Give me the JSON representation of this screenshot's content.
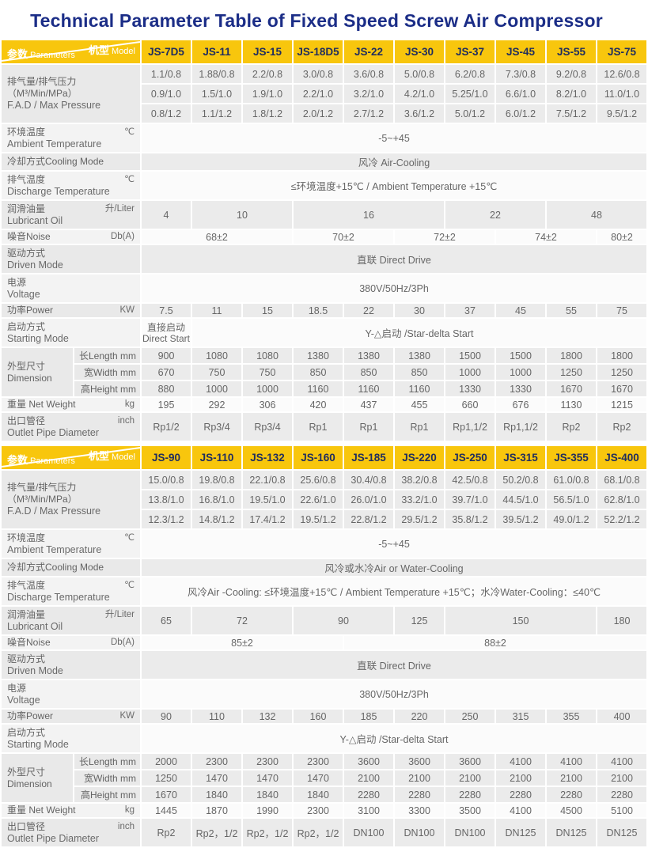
{
  "title": "Technical Parameter Table of  Fixed Speed Screw Air Compressor",
  "colors": {
    "accent_yellow": "#f8c60d",
    "title_blue": "#1b2d87",
    "model_text": "#202d5e",
    "body_text": "#666666"
  },
  "corner": {
    "model_zh": "机型",
    "model_en": "Model",
    "param_zh": "参数",
    "param_en": "Parameters"
  },
  "tables": [
    {
      "models": [
        "JS-7D5",
        "JS-11",
        "JS-15",
        "JS-18D5",
        "JS-22",
        "JS-30",
        "JS-37",
        "JS-45",
        "JS-55",
        "JS-75"
      ],
      "rows": [
        {
          "type": "multi",
          "shade": "g",
          "label": {
            "zh": "排气量/排气压力（M³/Min/MPa）",
            "en": "F.A.D / Max Pressure",
            "unit": ""
          },
          "lines": [
            [
              "1.1/0.8",
              "1.88/0.8",
              "2.2/0.8",
              "3.0/0.8",
              "3.6/0.8",
              "5.0/0.8",
              "6.2/0.8",
              "7.3/0.8",
              "9.2/0.8",
              "12.6/0.8"
            ],
            [
              "0.9/1.0",
              "1.5/1.0",
              "1.9/1.0",
              "2.2/1.0",
              "3.2/1.0",
              "4.2/1.0",
              "5.25/1.0",
              "6.6/1.0",
              "8.2/1.0",
              "11.0/1.0"
            ],
            [
              "0.8/1.2",
              "1.1/1.2",
              "1.8/1.2",
              "2.0/1.2",
              "2.7/1.2",
              "3.6/1.2",
              "5.0/1.2",
              "6.0/1.2",
              "7.5/1.2",
              "9.5/1.2"
            ]
          ]
        },
        {
          "type": "cells",
          "shade": "l",
          "h": "tall",
          "label": {
            "zh": "环境温度",
            "en": "Ambient Temperature",
            "unit": "℃"
          },
          "cells": [
            {
              "t": "-5~+45",
              "s": 10
            }
          ]
        },
        {
          "type": "cells",
          "shade": "g",
          "h": "short",
          "label": {
            "zh": "冷却方式Cooling Mode",
            "en": "",
            "unit": ""
          },
          "cells": [
            {
              "t": "风冷  Air-Cooling",
              "s": 10
            }
          ]
        },
        {
          "type": "cells",
          "shade": "l",
          "h": "tall",
          "label": {
            "zh": "排气温度",
            "en": "Discharge Temperature",
            "unit": "℃"
          },
          "cells": [
            {
              "t": "≤环境温度+15℃ / Ambient Temperature  +15℃",
              "s": 10
            }
          ]
        },
        {
          "type": "cells",
          "shade": "g",
          "h": "tall",
          "label": {
            "zh": "润滑油量",
            "en": "Lubricant Oil",
            "unit": "升/Liter"
          },
          "cells": [
            {
              "t": "4",
              "s": 1
            },
            {
              "t": "10",
              "s": 2
            },
            {
              "t": "16",
              "s": 3
            },
            {
              "t": "22",
              "s": 2
            },
            {
              "t": "48",
              "s": 2
            }
          ]
        },
        {
          "type": "cells",
          "shade": "l",
          "h": "short",
          "label": {
            "zh": "噪音Noise",
            "en": "",
            "unit": "Db(A)"
          },
          "cells": [
            {
              "t": "68±2",
              "s": 3
            },
            {
              "t": "70±2",
              "s": 2
            },
            {
              "t": "72±2",
              "s": 2
            },
            {
              "t": "74±2",
              "s": 2
            },
            {
              "t": "80±2",
              "s": 1
            }
          ]
        },
        {
          "type": "cells",
          "shade": "g",
          "h": "tall",
          "label": {
            "zh": "驱动方式",
            "en": "Driven Mode",
            "unit": ""
          },
          "cells": [
            {
              "t": "直联 Direct Drive",
              "s": 10
            }
          ]
        },
        {
          "type": "cells",
          "shade": "l",
          "h": "tall",
          "label": {
            "zh": "电源",
            "en": "Voltage",
            "unit": ""
          },
          "cells": [
            {
              "t": "380V/50Hz/3Ph",
              "s": 10
            }
          ]
        },
        {
          "type": "cells",
          "shade": "g",
          "h": "short",
          "label": {
            "zh": "功率Power",
            "en": "",
            "unit": "KW"
          },
          "cells": [
            {
              "t": "7.5"
            },
            {
              "t": "11"
            },
            {
              "t": "15"
            },
            {
              "t": "18.5"
            },
            {
              "t": "22"
            },
            {
              "t": "30"
            },
            {
              "t": "37"
            },
            {
              "t": "45"
            },
            {
              "t": "55"
            },
            {
              "t": "75"
            }
          ]
        },
        {
          "type": "cells",
          "shade": "l",
          "h": "tall",
          "label": {
            "zh": "启动方式",
            "en": "Starting Mode",
            "unit": ""
          },
          "cells": [
            {
              "t": "直接启动\nDirect Start",
              "s": 1,
              "pre": true
            },
            {
              "t": "Y-△启动 /Star-delta Start",
              "s": 9
            }
          ]
        },
        {
          "type": "dim",
          "shade": "g",
          "group": {
            "zh": "外型尺寸",
            "en": "Dimension"
          },
          "subrows": [
            {
              "n": "长Length mm",
              "v": [
                "900",
                "1080",
                "1080",
                "1380",
                "1380",
                "1380",
                "1500",
                "1500",
                "1800",
                "1800"
              ]
            },
            {
              "n": "宽Width  mm",
              "v": [
                "670",
                "750",
                "750",
                "850",
                "850",
                "850",
                "1000",
                "1000",
                "1250",
                "1250"
              ]
            },
            {
              "n": "高Height mm",
              "v": [
                "880",
                "1000",
                "1000",
                "1160",
                "1160",
                "1160",
                "1330",
                "1330",
                "1670",
                "1670"
              ]
            }
          ]
        },
        {
          "type": "cells",
          "shade": "l",
          "h": "short",
          "label": {
            "zh": "重量 Net Weight",
            "en": "",
            "unit": "kg"
          },
          "cells": [
            {
              "t": "195"
            },
            {
              "t": "292"
            },
            {
              "t": "306"
            },
            {
              "t": "420"
            },
            {
              "t": "437"
            },
            {
              "t": "455"
            },
            {
              "t": "660"
            },
            {
              "t": "676"
            },
            {
              "t": "1130"
            },
            {
              "t": "1215"
            }
          ]
        },
        {
          "type": "cells",
          "shade": "g",
          "h": "tall",
          "label": {
            "zh": "出口管径",
            "en": "Outlet Pipe Diameter",
            "unit": "inch"
          },
          "cells": [
            {
              "t": "Rp1/2"
            },
            {
              "t": "Rp3/4"
            },
            {
              "t": "Rp3/4"
            },
            {
              "t": "Rp1"
            },
            {
              "t": "Rp1"
            },
            {
              "t": "Rp1"
            },
            {
              "t": "Rp1,1/2"
            },
            {
              "t": "Rp1,1/2"
            },
            {
              "t": "Rp2"
            },
            {
              "t": "Rp2"
            }
          ]
        }
      ]
    },
    {
      "models": [
        "JS-90",
        "JS-110",
        "JS-132",
        "JS-160",
        "JS-185",
        "JS-220",
        "JS-250",
        "JS-315",
        "JS-355",
        "JS-400"
      ],
      "rows": [
        {
          "type": "multi",
          "shade": "g",
          "label": {
            "zh": "排气量/排气压力（M³/Min/MPa）",
            "en": "F.A.D / Max Pressure",
            "unit": ""
          },
          "lines": [
            [
              "15.0/0.8",
              "19.8/0.8",
              "22.1/0.8",
              "25.6/0.8",
              "30.4/0.8",
              "38.2/0.8",
              "42.5/0.8",
              "50.2/0.8",
              "61.0/0.8",
              "68.1/0.8"
            ],
            [
              "13.8/1.0",
              "16.8/1.0",
              "19.5/1.0",
              "22.6/1.0",
              "26.0/1.0",
              "33.2/1.0",
              "39.7/1.0",
              "44.5/1.0",
              "56.5/1.0",
              "62.8/1.0"
            ],
            [
              "12.3/1.2",
              "14.8/1.2",
              "17.4/1.2",
              "19.5/1.2",
              "22.8/1.2",
              "29.5/1.2",
              "35.8/1.2",
              "39.5/1.2",
              "49.0/1.2",
              "52.2/1.2"
            ]
          ]
        },
        {
          "type": "cells",
          "shade": "l",
          "h": "tall",
          "label": {
            "zh": "环境温度",
            "en": "Ambient Temperature",
            "unit": "℃"
          },
          "cells": [
            {
              "t": "-5~+45",
              "s": 10
            }
          ]
        },
        {
          "type": "cells",
          "shade": "g",
          "h": "short",
          "label": {
            "zh": "冷却方式Cooling Mode",
            "en": "",
            "unit": ""
          },
          "cells": [
            {
              "t": "风冷或水冷Air or Water-Cooling",
              "s": 10
            }
          ]
        },
        {
          "type": "cells",
          "shade": "l",
          "h": "tall",
          "label": {
            "zh": "排气温度",
            "en": "Discharge Temperature",
            "unit": "℃"
          },
          "cells": [
            {
              "t": "风冷Air -Cooling: ≤环境温度+15℃ / Ambient Temperature  +15℃；水冷Water-Cooling：≤40℃",
              "s": 10
            }
          ]
        },
        {
          "type": "cells",
          "shade": "g",
          "h": "tall",
          "label": {
            "zh": "润滑油量",
            "en": "Lubricant Oil",
            "unit": "升/Liter"
          },
          "cells": [
            {
              "t": "65",
              "s": 1
            },
            {
              "t": "72",
              "s": 2
            },
            {
              "t": "90",
              "s": 2
            },
            {
              "t": "125",
              "s": 1
            },
            {
              "t": "150",
              "s": 3
            },
            {
              "t": "180",
              "s": 1
            }
          ]
        },
        {
          "type": "cells",
          "shade": "l",
          "h": "short",
          "label": {
            "zh": "噪音Noise",
            "en": "",
            "unit": "Db(A)"
          },
          "cells": [
            {
              "t": "85±2",
              "s": 4
            },
            {
              "t": "88±2",
              "s": 6
            }
          ]
        },
        {
          "type": "cells",
          "shade": "g",
          "h": "tall",
          "label": {
            "zh": "驱动方式",
            "en": "Driven Mode",
            "unit": ""
          },
          "cells": [
            {
              "t": "直联 Direct Drive",
              "s": 10
            }
          ]
        },
        {
          "type": "cells",
          "shade": "l",
          "h": "tall",
          "label": {
            "zh": "电源",
            "en": "Voltage",
            "unit": ""
          },
          "cells": [
            {
              "t": "380V/50Hz/3Ph",
              "s": 10
            }
          ]
        },
        {
          "type": "cells",
          "shade": "g",
          "h": "short",
          "label": {
            "zh": "功率Power",
            "en": "",
            "unit": "KW"
          },
          "cells": [
            {
              "t": "90"
            },
            {
              "t": "110"
            },
            {
              "t": "132"
            },
            {
              "t": "160"
            },
            {
              "t": "185"
            },
            {
              "t": "220"
            },
            {
              "t": "250"
            },
            {
              "t": "315"
            },
            {
              "t": "355"
            },
            {
              "t": "400"
            }
          ]
        },
        {
          "type": "cells",
          "shade": "l",
          "h": "tall",
          "label": {
            "zh": "启动方式",
            "en": "Starting Mode",
            "unit": ""
          },
          "cells": [
            {
              "t": "Y-△启动 /Star-delta Start",
              "s": 10
            }
          ]
        },
        {
          "type": "dim",
          "shade": "g",
          "group": {
            "zh": "外型尺寸",
            "en": "Dimension"
          },
          "subrows": [
            {
              "n": "长Length mm",
              "v": [
                "2000",
                "2300",
                "2300",
                "2300",
                "3600",
                "3600",
                "3600",
                "4100",
                "4100",
                "4100"
              ]
            },
            {
              "n": "宽Width  mm",
              "v": [
                "1250",
                "1470",
                "1470",
                "1470",
                "2100",
                "2100",
                "2100",
                "2100",
                "2100",
                "2100"
              ]
            },
            {
              "n": "高Height mm",
              "v": [
                "1670",
                "1840",
                "1840",
                "1840",
                "2280",
                "2280",
                "2280",
                "2280",
                "2280",
                "2280"
              ]
            }
          ]
        },
        {
          "type": "cells",
          "shade": "l",
          "h": "short",
          "label": {
            "zh": "重量 Net Weight",
            "en": "",
            "unit": "kg"
          },
          "cells": [
            {
              "t": "1445"
            },
            {
              "t": "1870"
            },
            {
              "t": "1990"
            },
            {
              "t": "2300"
            },
            {
              "t": "3100"
            },
            {
              "t": "3300"
            },
            {
              "t": "3500"
            },
            {
              "t": "4100"
            },
            {
              "t": "4500"
            },
            {
              "t": "5100"
            }
          ]
        },
        {
          "type": "cells",
          "shade": "g",
          "h": "tall",
          "label": {
            "zh": "出口管径",
            "en": "Outlet Pipe Diameter",
            "unit": "inch"
          },
          "cells": [
            {
              "t": "Rp2"
            },
            {
              "t": "Rp2，1/2"
            },
            {
              "t": "Rp2，1/2"
            },
            {
              "t": "Rp2，1/2"
            },
            {
              "t": "DN100"
            },
            {
              "t": "DN100"
            },
            {
              "t": "DN100"
            },
            {
              "t": "DN125"
            },
            {
              "t": "DN125"
            },
            {
              "t": "DN125"
            }
          ]
        }
      ]
    }
  ]
}
